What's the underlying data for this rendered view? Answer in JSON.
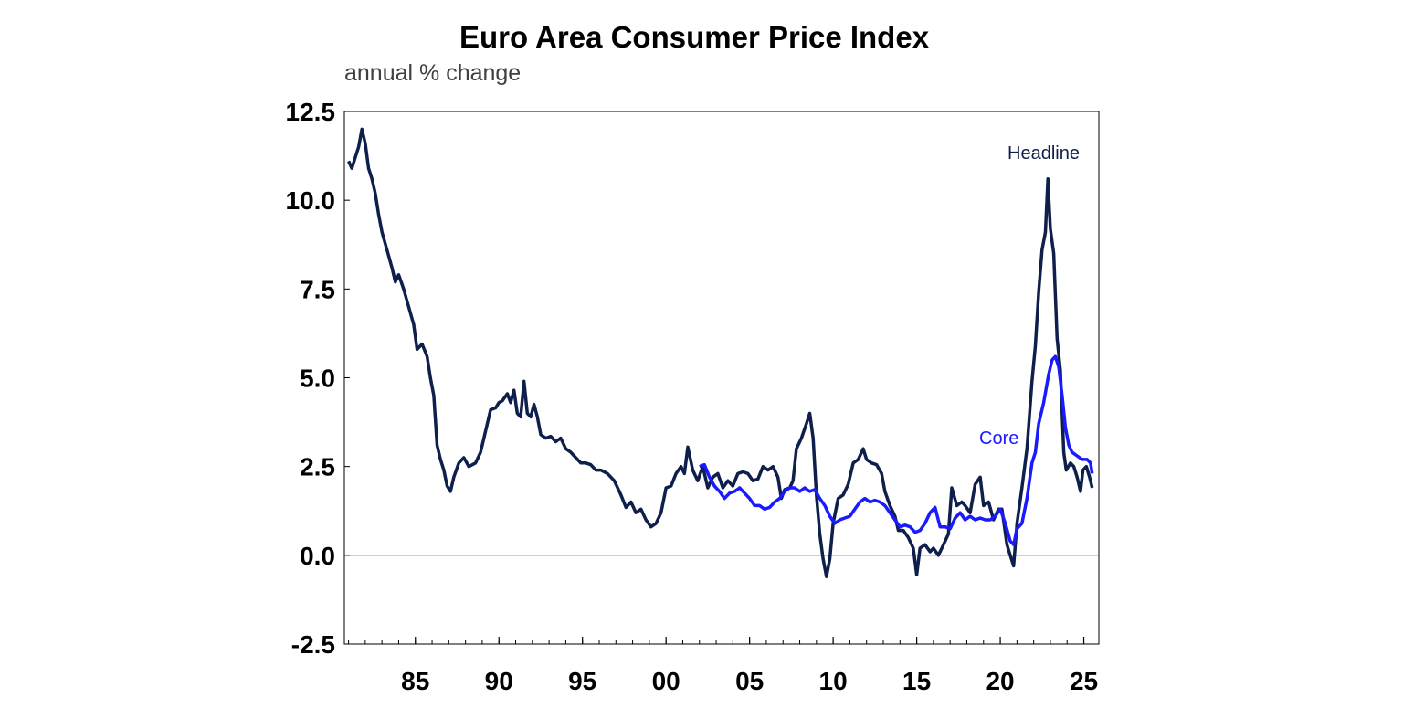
{
  "chart_data": {
    "type": "line",
    "title": "Euro Area Consumer Price Index",
    "subtitle": "annual % change",
    "xlabel": "",
    "ylabel": "",
    "xlim": [
      1980.75,
      2025.9
    ],
    "ylim": [
      -2.5,
      12.5
    ],
    "yticks": [
      "12.5",
      "10.0",
      "7.5",
      "5.0",
      "2.5",
      "0.0",
      "-2.5"
    ],
    "xticks": [
      {
        "year": 1985,
        "label": "85"
      },
      {
        "year": 1990,
        "label": "90"
      },
      {
        "year": 1995,
        "label": "95"
      },
      {
        "year": 2000,
        "label": "00"
      },
      {
        "year": 2005,
        "label": "05"
      },
      {
        "year": 2010,
        "label": "10"
      },
      {
        "year": 2015,
        "label": "15"
      },
      {
        "year": 2020,
        "label": "20"
      },
      {
        "year": 2025,
        "label": "25"
      }
    ],
    "zero_line": true,
    "grid": false,
    "series": [
      {
        "name": "Headline",
        "color": "#0f1f4b",
        "points": [
          [
            1981.0,
            11.1
          ],
          [
            1981.2,
            10.9
          ],
          [
            1981.4,
            11.2
          ],
          [
            1981.6,
            11.5
          ],
          [
            1981.8,
            12.0
          ],
          [
            1982.0,
            11.6
          ],
          [
            1982.2,
            10.9
          ],
          [
            1982.4,
            10.6
          ],
          [
            1982.6,
            10.2
          ],
          [
            1982.8,
            9.6
          ],
          [
            1983.0,
            9.1
          ],
          [
            1983.3,
            8.6
          ],
          [
            1983.6,
            8.1
          ],
          [
            1983.8,
            7.7
          ],
          [
            1984.0,
            7.9
          ],
          [
            1984.3,
            7.5
          ],
          [
            1984.6,
            7.0
          ],
          [
            1984.9,
            6.5
          ],
          [
            1985.1,
            5.8
          ],
          [
            1985.4,
            5.95
          ],
          [
            1985.7,
            5.6
          ],
          [
            1985.9,
            5.0
          ],
          [
            1986.1,
            4.5
          ],
          [
            1986.3,
            3.1
          ],
          [
            1986.5,
            2.7
          ],
          [
            1986.7,
            2.4
          ],
          [
            1986.9,
            1.95
          ],
          [
            1987.1,
            1.8
          ],
          [
            1987.3,
            2.2
          ],
          [
            1987.6,
            2.6
          ],
          [
            1987.9,
            2.75
          ],
          [
            1988.2,
            2.5
          ],
          [
            1988.6,
            2.6
          ],
          [
            1988.9,
            2.9
          ],
          [
            1989.2,
            3.5
          ],
          [
            1989.5,
            4.1
          ],
          [
            1989.8,
            4.15
          ],
          [
            1990.0,
            4.3
          ],
          [
            1990.2,
            4.35
          ],
          [
            1990.5,
            4.55
          ],
          [
            1990.7,
            4.3
          ],
          [
            1990.9,
            4.65
          ],
          [
            1991.1,
            4.0
          ],
          [
            1991.3,
            3.9
          ],
          [
            1991.5,
            4.9
          ],
          [
            1991.7,
            4.0
          ],
          [
            1991.9,
            3.9
          ],
          [
            1992.1,
            4.25
          ],
          [
            1992.3,
            3.9
          ],
          [
            1992.5,
            3.4
          ],
          [
            1992.8,
            3.3
          ],
          [
            1993.1,
            3.35
          ],
          [
            1993.4,
            3.2
          ],
          [
            1993.7,
            3.3
          ],
          [
            1994.0,
            3.0
          ],
          [
            1994.3,
            2.9
          ],
          [
            1994.6,
            2.75
          ],
          [
            1994.9,
            2.6
          ],
          [
            1995.2,
            2.6
          ],
          [
            1995.5,
            2.55
          ],
          [
            1995.8,
            2.4
          ],
          [
            1996.1,
            2.4
          ],
          [
            1996.5,
            2.3
          ],
          [
            1996.9,
            2.1
          ],
          [
            1997.3,
            1.7
          ],
          [
            1997.6,
            1.35
          ],
          [
            1997.9,
            1.5
          ],
          [
            1998.2,
            1.2
          ],
          [
            1998.5,
            1.3
          ],
          [
            1998.8,
            1.0
          ],
          [
            1999.1,
            0.8
          ],
          [
            1999.4,
            0.9
          ],
          [
            1999.7,
            1.2
          ],
          [
            2000.0,
            1.9
          ],
          [
            2000.3,
            1.95
          ],
          [
            2000.6,
            2.3
          ],
          [
            2000.9,
            2.5
          ],
          [
            2001.1,
            2.3
          ],
          [
            2001.3,
            3.05
          ],
          [
            2001.6,
            2.4
          ],
          [
            2001.9,
            2.1
          ],
          [
            2002.2,
            2.5
          ],
          [
            2002.5,
            1.9
          ],
          [
            2002.8,
            2.2
          ],
          [
            2003.1,
            2.3
          ],
          [
            2003.4,
            1.9
          ],
          [
            2003.7,
            2.1
          ],
          [
            2004.0,
            1.95
          ],
          [
            2004.3,
            2.3
          ],
          [
            2004.6,
            2.35
          ],
          [
            2004.9,
            2.3
          ],
          [
            2005.2,
            2.1
          ],
          [
            2005.5,
            2.15
          ],
          [
            2005.8,
            2.5
          ],
          [
            2006.1,
            2.4
          ],
          [
            2006.4,
            2.5
          ],
          [
            2006.7,
            2.2
          ],
          [
            2006.9,
            1.6
          ],
          [
            2007.1,
            1.85
          ],
          [
            2007.4,
            1.9
          ],
          [
            2007.6,
            2.1
          ],
          [
            2007.8,
            3.0
          ],
          [
            2008.1,
            3.3
          ],
          [
            2008.4,
            3.7
          ],
          [
            2008.6,
            4.0
          ],
          [
            2008.8,
            3.3
          ],
          [
            2009.0,
            1.7
          ],
          [
            2009.2,
            0.6
          ],
          [
            2009.4,
            -0.1
          ],
          [
            2009.6,
            -0.6
          ],
          [
            2009.8,
            -0.1
          ],
          [
            2010.0,
            0.9
          ],
          [
            2010.3,
            1.6
          ],
          [
            2010.6,
            1.7
          ],
          [
            2010.9,
            2.0
          ],
          [
            2011.2,
            2.6
          ],
          [
            2011.5,
            2.7
          ],
          [
            2011.8,
            3.0
          ],
          [
            2012.0,
            2.7
          ],
          [
            2012.3,
            2.6
          ],
          [
            2012.6,
            2.55
          ],
          [
            2012.9,
            2.3
          ],
          [
            2013.1,
            1.8
          ],
          [
            2013.4,
            1.4
          ],
          [
            2013.7,
            1.1
          ],
          [
            2013.9,
            0.7
          ],
          [
            2014.2,
            0.7
          ],
          [
            2014.5,
            0.5
          ],
          [
            2014.8,
            0.2
          ],
          [
            2015.0,
            -0.55
          ],
          [
            2015.2,
            0.2
          ],
          [
            2015.5,
            0.3
          ],
          [
            2015.8,
            0.1
          ],
          [
            2016.0,
            0.2
          ],
          [
            2016.3,
            0.0
          ],
          [
            2016.6,
            0.3
          ],
          [
            2016.9,
            0.6
          ],
          [
            2017.1,
            1.9
          ],
          [
            2017.4,
            1.4
          ],
          [
            2017.7,
            1.5
          ],
          [
            2017.9,
            1.4
          ],
          [
            2018.2,
            1.2
          ],
          [
            2018.5,
            2.0
          ],
          [
            2018.8,
            2.2
          ],
          [
            2019.0,
            1.4
          ],
          [
            2019.3,
            1.5
          ],
          [
            2019.6,
            1.0
          ],
          [
            2019.9,
            1.3
          ],
          [
            2020.1,
            1.3
          ],
          [
            2020.4,
            0.3
          ],
          [
            2020.6,
            0.0
          ],
          [
            2020.8,
            -0.3
          ],
          [
            2021.0,
            0.9
          ],
          [
            2021.3,
            1.9
          ],
          [
            2021.6,
            3.0
          ],
          [
            2021.9,
            4.9
          ],
          [
            2022.1,
            5.9
          ],
          [
            2022.3,
            7.4
          ],
          [
            2022.5,
            8.6
          ],
          [
            2022.7,
            9.1
          ],
          [
            2022.85,
            10.6
          ],
          [
            2023.0,
            9.2
          ],
          [
            2023.2,
            8.5
          ],
          [
            2023.4,
            6.1
          ],
          [
            2023.6,
            5.2
          ],
          [
            2023.8,
            2.9
          ],
          [
            2023.95,
            2.4
          ],
          [
            2024.2,
            2.6
          ],
          [
            2024.4,
            2.5
          ],
          [
            2024.6,
            2.2
          ],
          [
            2024.8,
            1.8
          ],
          [
            2024.95,
            2.4
          ],
          [
            2025.15,
            2.5
          ],
          [
            2025.35,
            2.2
          ],
          [
            2025.5,
            1.9
          ]
        ]
      },
      {
        "name": "Core",
        "color": "#1a1aff",
        "points": [
          [
            2002.0,
            2.5
          ],
          [
            2002.3,
            2.55
          ],
          [
            2002.6,
            2.2
          ],
          [
            2002.9,
            1.95
          ],
          [
            2003.2,
            1.8
          ],
          [
            2003.5,
            1.6
          ],
          [
            2003.8,
            1.75
          ],
          [
            2004.1,
            1.8
          ],
          [
            2004.4,
            1.9
          ],
          [
            2004.7,
            1.75
          ],
          [
            2005.0,
            1.6
          ],
          [
            2005.3,
            1.4
          ],
          [
            2005.6,
            1.4
          ],
          [
            2005.9,
            1.3
          ],
          [
            2006.2,
            1.35
          ],
          [
            2006.5,
            1.5
          ],
          [
            2006.8,
            1.6
          ],
          [
            2007.1,
            1.8
          ],
          [
            2007.4,
            1.9
          ],
          [
            2007.7,
            1.9
          ],
          [
            2008.0,
            1.8
          ],
          [
            2008.3,
            1.9
          ],
          [
            2008.6,
            1.8
          ],
          [
            2008.9,
            1.85
          ],
          [
            2009.2,
            1.6
          ],
          [
            2009.5,
            1.4
          ],
          [
            2009.8,
            1.1
          ],
          [
            2010.1,
            0.9
          ],
          [
            2010.4,
            1.0
          ],
          [
            2010.7,
            1.05
          ],
          [
            2011.0,
            1.1
          ],
          [
            2011.3,
            1.3
          ],
          [
            2011.6,
            1.5
          ],
          [
            2011.9,
            1.6
          ],
          [
            2012.2,
            1.5
          ],
          [
            2012.5,
            1.55
          ],
          [
            2012.8,
            1.5
          ],
          [
            2013.1,
            1.4
          ],
          [
            2013.4,
            1.2
          ],
          [
            2013.7,
            1.0
          ],
          [
            2014.0,
            0.8
          ],
          [
            2014.3,
            0.85
          ],
          [
            2014.6,
            0.8
          ],
          [
            2014.9,
            0.65
          ],
          [
            2015.2,
            0.7
          ],
          [
            2015.5,
            0.9
          ],
          [
            2015.8,
            1.2
          ],
          [
            2016.1,
            1.35
          ],
          [
            2016.4,
            0.8
          ],
          [
            2016.7,
            0.8
          ],
          [
            2017.0,
            0.75
          ],
          [
            2017.3,
            1.05
          ],
          [
            2017.6,
            1.2
          ],
          [
            2017.9,
            1.0
          ],
          [
            2018.2,
            1.1
          ],
          [
            2018.5,
            1.0
          ],
          [
            2018.8,
            1.05
          ],
          [
            2019.1,
            1.0
          ],
          [
            2019.4,
            1.0
          ],
          [
            2019.7,
            1.1
          ],
          [
            2020.0,
            1.3
          ],
          [
            2020.3,
            0.9
          ],
          [
            2020.6,
            0.4
          ],
          [
            2020.8,
            0.3
          ],
          [
            2021.0,
            0.75
          ],
          [
            2021.3,
            0.9
          ],
          [
            2021.6,
            1.6
          ],
          [
            2021.9,
            2.6
          ],
          [
            2022.1,
            2.9
          ],
          [
            2022.3,
            3.7
          ],
          [
            2022.6,
            4.3
          ],
          [
            2022.9,
            5.1
          ],
          [
            2023.1,
            5.5
          ],
          [
            2023.3,
            5.6
          ],
          [
            2023.5,
            5.3
          ],
          [
            2023.7,
            4.5
          ],
          [
            2023.9,
            3.6
          ],
          [
            2024.1,
            3.1
          ],
          [
            2024.3,
            2.9
          ],
          [
            2024.6,
            2.8
          ],
          [
            2024.9,
            2.7
          ],
          [
            2025.2,
            2.7
          ],
          [
            2025.4,
            2.6
          ],
          [
            2025.5,
            2.3
          ]
        ]
      }
    ]
  }
}
